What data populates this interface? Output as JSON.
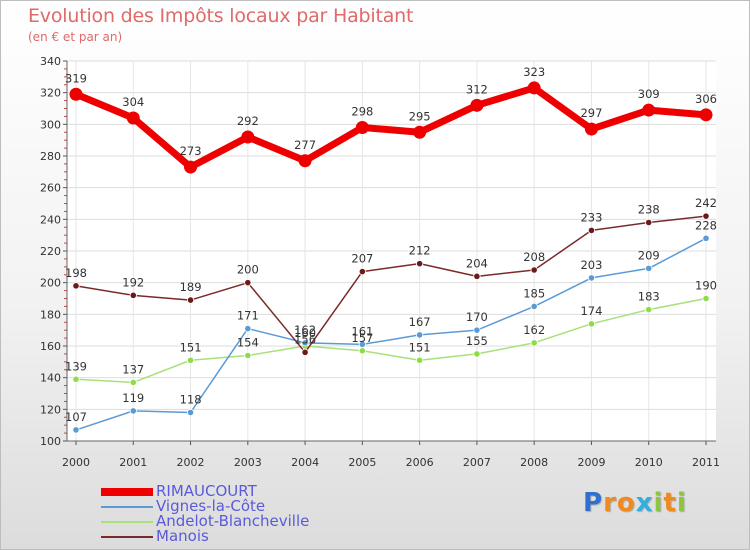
{
  "chart_data": {
    "type": "line",
    "title": "Evolution des Impôts locaux par Habitant",
    "subtitle": "(en € et par an)",
    "categories": [
      "2000",
      "2001",
      "2002",
      "2003",
      "2004",
      "2005",
      "2006",
      "2007",
      "2008",
      "2009",
      "2010",
      "2011"
    ],
    "ylim": [
      100,
      340
    ],
    "yticks": [
      100,
      120,
      140,
      160,
      180,
      200,
      220,
      240,
      260,
      280,
      300,
      320,
      340
    ],
    "grid": true,
    "legend_position": "bottom-left",
    "series": [
      {
        "name": "RIMAUCOURT",
        "color": "#ee0000",
        "dot_color": "#ee0000",
        "values": [
          319,
          304,
          273,
          292,
          277,
          298,
          295,
          312,
          323,
          297,
          309,
          306
        ]
      },
      {
        "name": "Vignes-la-Côte",
        "color": "#5a9ad6",
        "dot_color": "#5a9ad6",
        "values": [
          107,
          119,
          118,
          171,
          162,
          161,
          167,
          170,
          185,
          203,
          209,
          228
        ]
      },
      {
        "name": "Andelot-Blancheville",
        "color": "#a8e07a",
        "dot_color": "#8fdc4a",
        "values": [
          139,
          137,
          151,
          154,
          160,
          157,
          151,
          155,
          162,
          174,
          183,
          190
        ]
      },
      {
        "name": "Manois",
        "color": "#7a2a2a",
        "dot_color": "#6a1a1a",
        "values": [
          198,
          192,
          189,
          200,
          156,
          207,
          212,
          204,
          208,
          233,
          238,
          242
        ]
      }
    ]
  },
  "logo": {
    "letters": [
      {
        "ch": "P",
        "color": "#2f6fd0"
      },
      {
        "ch": "r",
        "color": "#f08a1c"
      },
      {
        "ch": "o",
        "color": "#f08a1c"
      },
      {
        "ch": "x",
        "color": "#2fb0e0"
      },
      {
        "ch": "i",
        "color": "#8cc63f"
      },
      {
        "ch": "t",
        "color": "#f08a1c"
      },
      {
        "ch": "i",
        "color": "#8cc63f"
      }
    ]
  }
}
